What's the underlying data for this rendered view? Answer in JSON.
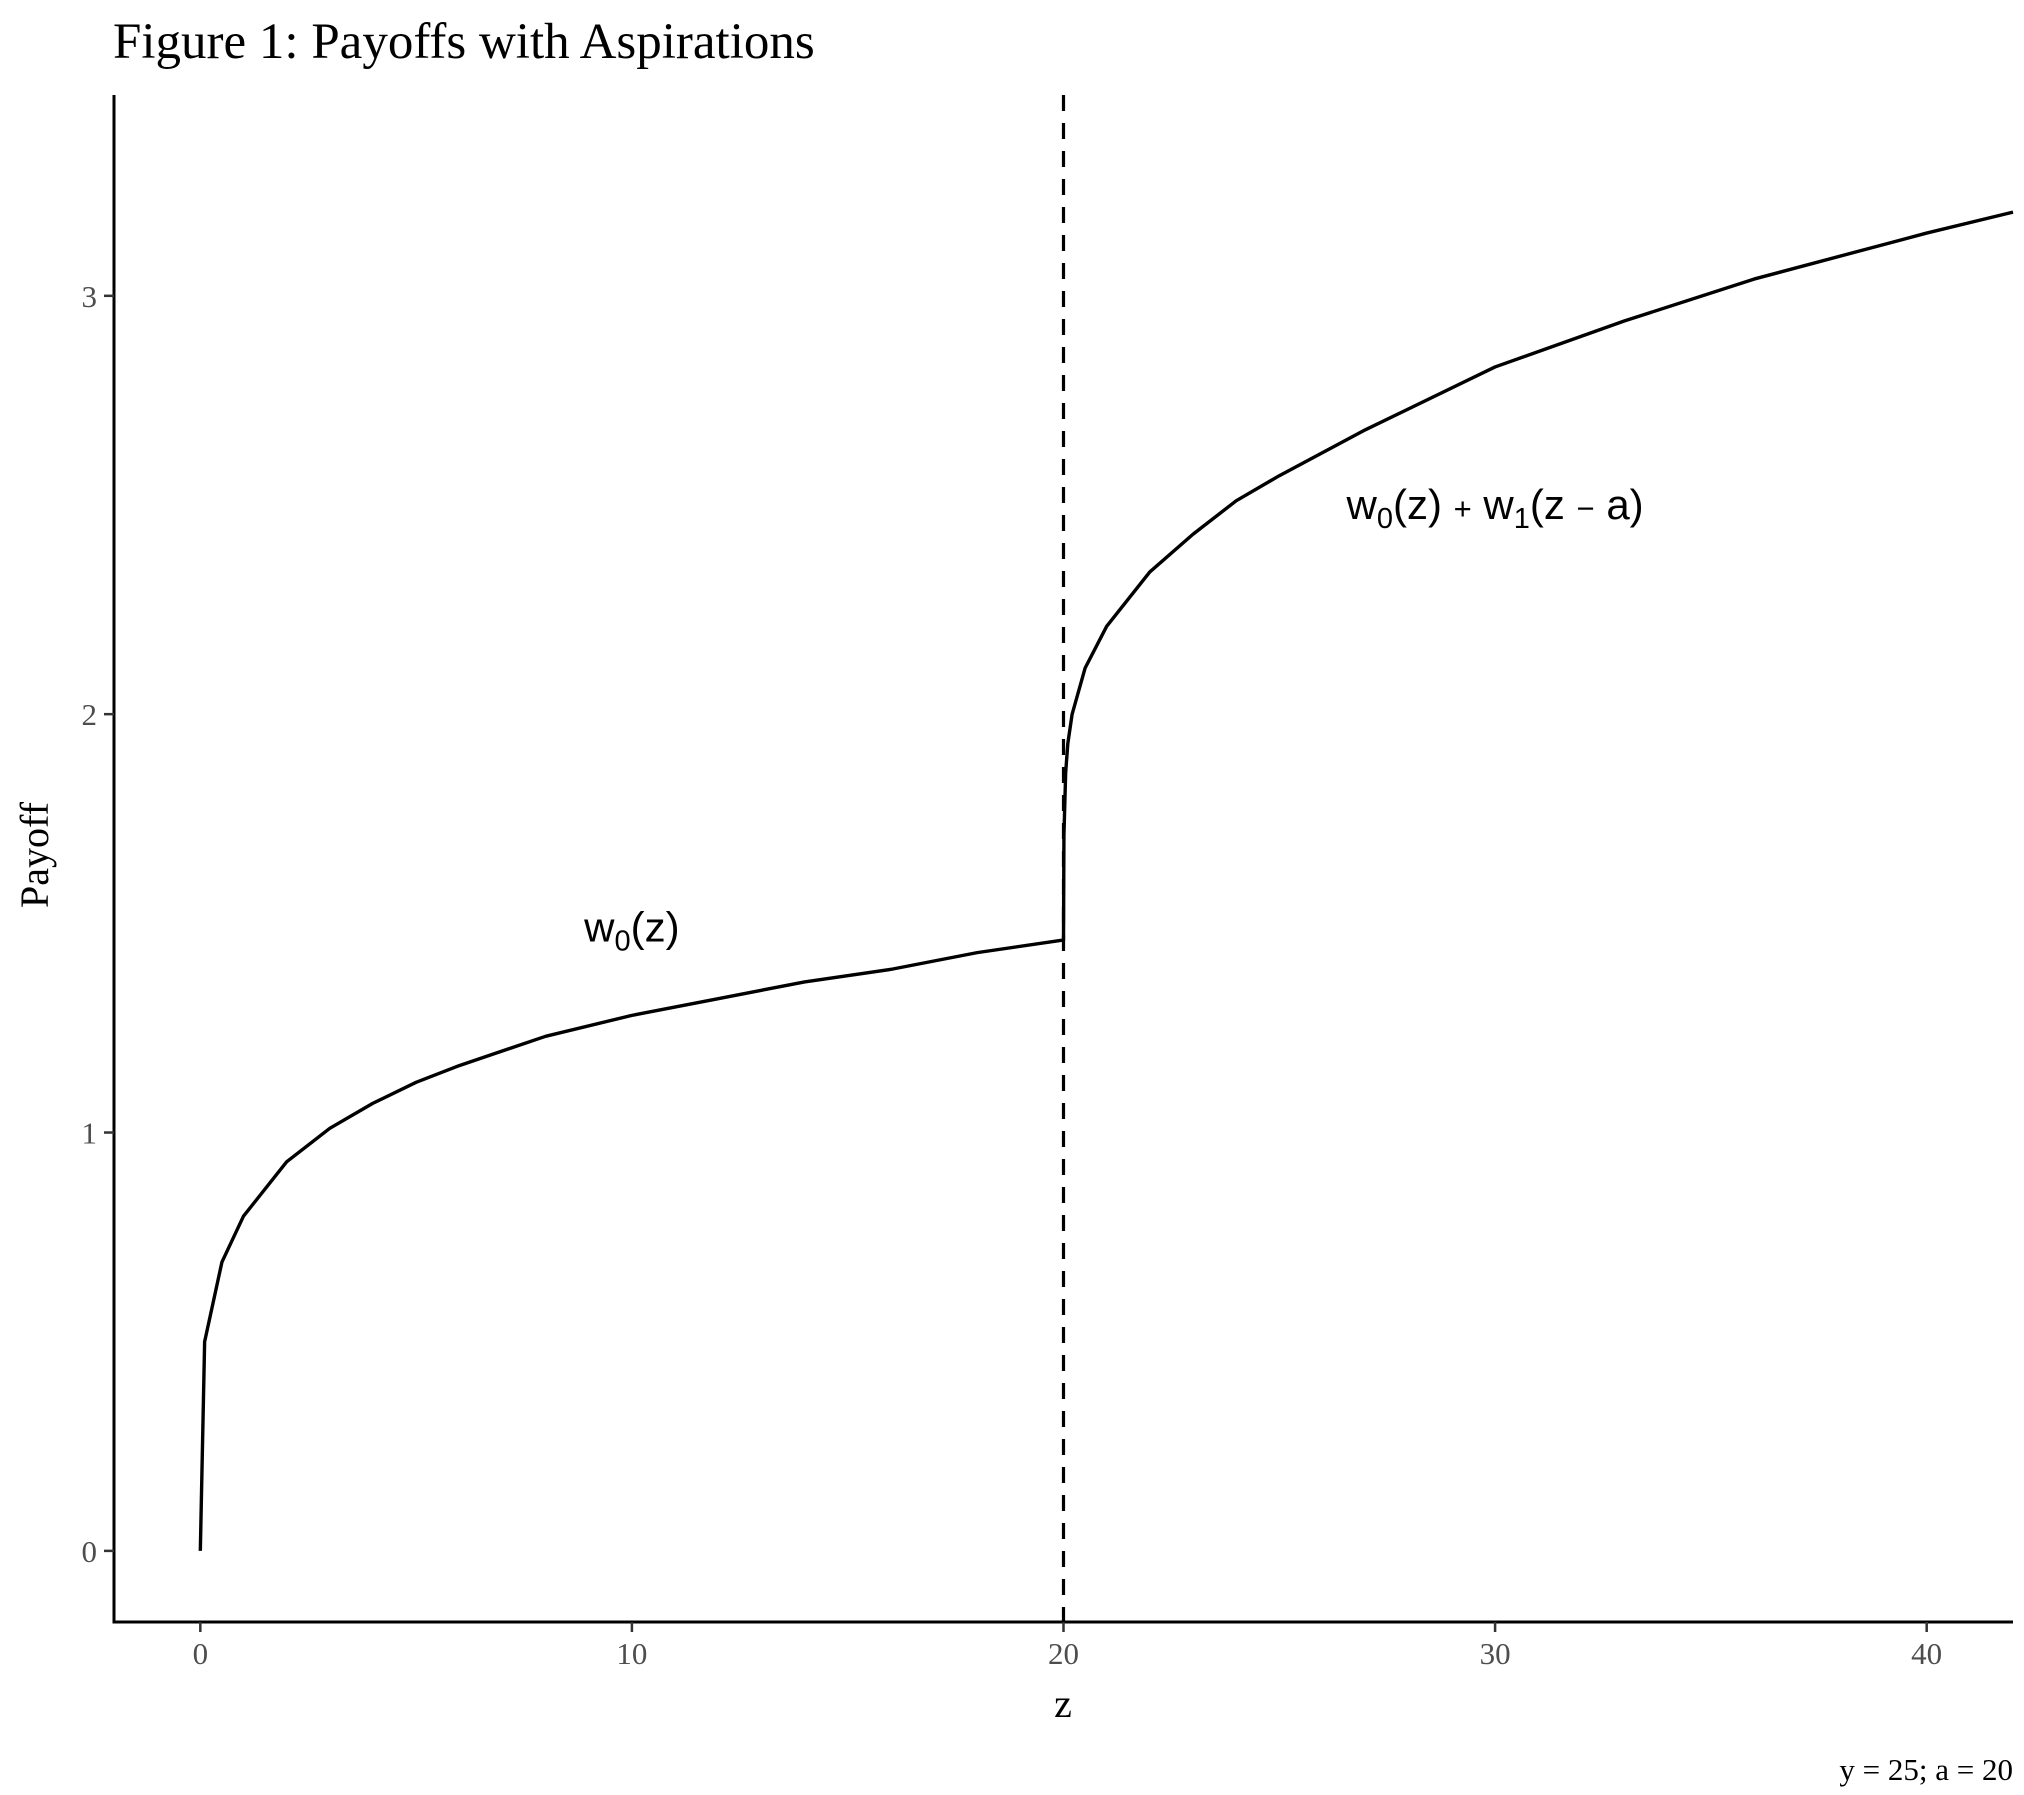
{
  "chart_data": {
    "type": "line",
    "title": "Figure 1: Payoffs with Aspirations",
    "xlabel": "z",
    "ylabel": "Payoff",
    "caption": "y = 25; a = 20",
    "xlim": [
      -2,
      42
    ],
    "ylim": [
      -0.17,
      3.48
    ],
    "xticks": [
      0,
      10,
      20,
      30,
      40
    ],
    "yticks": [
      0,
      1,
      2,
      3
    ],
    "xtick_labels": [
      "0",
      "10",
      "20",
      "30",
      "40"
    ],
    "ytick_labels": [
      "0",
      "1",
      "2",
      "3"
    ],
    "grid": false,
    "legend": "none",
    "series": [
      {
        "x": [
          0,
          0.1,
          0.5,
          1,
          2,
          3,
          4,
          5,
          6,
          8,
          10,
          12,
          14,
          16,
          18,
          19.99,
          20,
          20.01,
          20.05,
          20.1,
          20.2,
          20.5,
          21,
          22,
          23,
          24,
          25,
          27,
          30,
          33,
          36,
          40,
          42
        ],
        "y": [
          0,
          0.5,
          0.69,
          0.8,
          0.93,
          1.01,
          1.07,
          1.12,
          1.16,
          1.23,
          1.28,
          1.32,
          1.36,
          1.39,
          1.43,
          1.46,
          1.46,
          1.71,
          1.86,
          1.93,
          2.0,
          2.11,
          2.21,
          2.34,
          2.43,
          2.51,
          2.57,
          2.68,
          2.83,
          2.94,
          3.04,
          3.15,
          3.2
        ]
      }
    ],
    "vlines": [
      {
        "x": 20,
        "style": "dashed"
      }
    ],
    "annotations": [
      {
        "base": "w",
        "sub": "0",
        "rest": "(z)",
        "x": 10,
        "y": 1.49
      },
      {
        "parts": [
          {
            "t": "w"
          },
          {
            "t": "0",
            "sub": true
          },
          {
            "t": "(z) "
          },
          {
            "t": "+",
            "small": true
          },
          {
            "t": " w"
          },
          {
            "t": "1",
            "sub": true
          },
          {
            "t": "(z "
          },
          {
            "t": "−",
            "small": true
          },
          {
            "t": " a)"
          }
        ],
        "x": 30,
        "y": 2.5
      }
    ]
  }
}
